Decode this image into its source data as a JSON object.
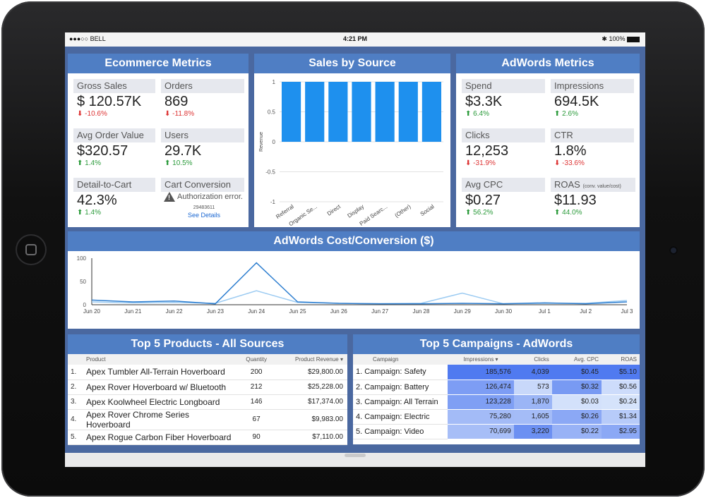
{
  "status": {
    "carrier": "●●●○○ BELL",
    "time": "4:21 PM",
    "battery": "100%"
  },
  "ecommerce": {
    "title": "Ecommerce Metrics",
    "gross_sales": {
      "label": "Gross Sales",
      "value": "$ 120.57K",
      "change": "-10.6%"
    },
    "orders": {
      "label": "Orders",
      "value": "869",
      "change": "-11.8%"
    },
    "avg_order": {
      "label": "Avg Order Value",
      "value": "$320.57",
      "change": "1.4%"
    },
    "users": {
      "label": "Users",
      "value": "29.7K",
      "change": "10.5%"
    },
    "detail_cart": {
      "label": "Detail-to-Cart",
      "value": "42.3%",
      "change": "1.4%"
    },
    "cart_conv": {
      "label": "Cart Conversion",
      "error": "Authorization error.",
      "code": "29483611",
      "link": "See Details"
    }
  },
  "sales_source": {
    "title": "Sales by Source",
    "chart_data": {
      "type": "bar",
      "categories": [
        "Referral",
        "Organic Se...",
        "Direct",
        "Display",
        "Paid Searc...",
        "(Other)",
        "Social"
      ],
      "values": [
        1,
        1,
        1,
        1,
        1,
        1,
        1
      ],
      "ylabel": "Revenue",
      "yticks": [
        "1",
        "0.5",
        "0",
        "-0.5",
        "-1"
      ],
      "ylim": [
        -1,
        1
      ],
      "color": "#1e90ee"
    }
  },
  "adwords": {
    "title": "AdWords Metrics",
    "spend": {
      "label": "Spend",
      "value": "$3.3K",
      "change": "6.4%"
    },
    "impressions": {
      "label": "Impressions",
      "value": "694.5K",
      "change": "2.6%"
    },
    "clicks": {
      "label": "Clicks",
      "value": "12,253",
      "change": "-31.9%"
    },
    "ctr": {
      "label": "CTR",
      "value": "1.8%",
      "change": "-33.6%"
    },
    "avg_cpc": {
      "label": "Avg CPC",
      "value": "$0.27",
      "change": "56.2%"
    },
    "roas": {
      "label": "ROAS",
      "sub": "(conv. value/cost)",
      "value": "$11.93",
      "change": "44.0%"
    }
  },
  "cost_conv": {
    "title": "AdWords Cost/Conversion ($)",
    "chart_data": {
      "type": "line",
      "x": [
        "Jun 20",
        "Jun 21",
        "Jun 22",
        "Jun 23",
        "Jun 24",
        "Jun 25",
        "Jun 26",
        "Jun 27",
        "Jun 28",
        "Jun 29",
        "Jun 30",
        "Jul 1",
        "Jul 2",
        "Jul 3"
      ],
      "yticks": [
        "100",
        "50",
        "0"
      ],
      "ylim": [
        0,
        100
      ],
      "series": [
        {
          "values": [
            10,
            6,
            8,
            2,
            90,
            6,
            3,
            2,
            2,
            3,
            2,
            4,
            2,
            6
          ],
          "color": "#2f7fd0"
        },
        {
          "values": [
            6,
            4,
            5,
            3,
            30,
            5,
            3,
            2,
            3,
            25,
            2,
            3,
            3,
            9
          ],
          "color": "#9ccbf2"
        }
      ]
    }
  },
  "products": {
    "title": "Top 5 Products - All Sources",
    "headers": [
      "Product",
      "Quantity",
      "Product Revenue ▾"
    ],
    "rows": [
      {
        "n": "1.",
        "name": "Apex Tumbler  All-Terrain Hoverboard",
        "qty": "200",
        "rev": "$29,800.00"
      },
      {
        "n": "2.",
        "name": "Apex Rover Hoverboard w/ Bluetooth",
        "qty": "212",
        "rev": "$25,228.00"
      },
      {
        "n": "3.",
        "name": "Apex Koolwheel Electric Longboard",
        "qty": "146",
        "rev": "$17,374.00"
      },
      {
        "n": "4.",
        "name": "Apex Rover Chrome Series Hoverboard",
        "qty": "67",
        "rev": "$9,983.00"
      },
      {
        "n": "5.",
        "name": "Apex Rogue Carbon Fiber Hoverboard",
        "qty": "90",
        "rev": "$7,110.00"
      }
    ]
  },
  "campaigns": {
    "title": "Top 5 Campaigns - AdWords",
    "headers": [
      "Campaign",
      "Impressions ▾",
      "Clicks",
      "Avg. CPC",
      "ROAS"
    ],
    "rows": [
      {
        "name": "1. Campaign: Safety",
        "imp": "185,576",
        "clicks": "4,039",
        "cpc": "$0.45",
        "roas": "$5.10"
      },
      {
        "name": "2. Campaign: Battery",
        "imp": "126,474",
        "clicks": "573",
        "cpc": "$0.32",
        "roas": "$0.56"
      },
      {
        "name": "3. Campaign: All Terrain",
        "imp": "123,228",
        "clicks": "1,870",
        "cpc": "$0.03",
        "roas": "$0.24"
      },
      {
        "name": "4. Campaign: Electric",
        "imp": "75,280",
        "clicks": "1,605",
        "cpc": "$0.26",
        "roas": "$1.34"
      },
      {
        "name": "5. Campaign: Video",
        "imp": "70,699",
        "clicks": "3,220",
        "cpc": "$0.22",
        "roas": "$2.95"
      }
    ]
  }
}
